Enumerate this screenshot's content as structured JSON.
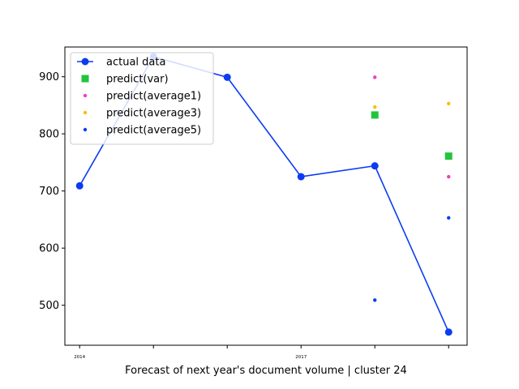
{
  "chart_data": {
    "type": "line",
    "title": "",
    "xlabel": "Forecast of next year's document volume | cluster 24",
    "ylabel": "",
    "x": [
      0,
      1,
      2,
      3,
      4,
      5
    ],
    "xlim": [
      -0.2,
      5.25
    ],
    "ylim": [
      430,
      952
    ],
    "x_ticks": [
      {
        "x": 0,
        "label": "2014"
      },
      {
        "x": 1,
        "label": ""
      },
      {
        "x": 2,
        "label": ""
      },
      {
        "x": 3,
        "label": "2017"
      },
      {
        "x": 4,
        "label": ""
      },
      {
        "x": 5,
        "label": ""
      }
    ],
    "y_ticks": [
      500,
      600,
      700,
      800,
      900
    ],
    "legend_position": "top-left",
    "grid": false,
    "series": [
      {
        "name": "actual data",
        "kind": "line-marker",
        "color": "#0b3cf2",
        "points": [
          [
            0,
            709
          ],
          [
            1,
            935
          ],
          [
            2,
            899
          ],
          [
            3,
            725
          ],
          [
            4,
            744
          ],
          [
            5,
            453
          ]
        ]
      },
      {
        "name": "predict(var)",
        "kind": "square",
        "color": "#22c43c",
        "points": [
          [
            4,
            833
          ],
          [
            5,
            761
          ]
        ]
      },
      {
        "name": "predict(average1)",
        "kind": "dot",
        "color": "#ee3fc0",
        "points": [
          [
            4,
            899
          ],
          [
            5,
            725
          ]
        ]
      },
      {
        "name": "predict(average3)",
        "kind": "dot",
        "color": "#f5c000",
        "points": [
          [
            4,
            847
          ],
          [
            5,
            853
          ]
        ]
      },
      {
        "name": "predict(average5)",
        "kind": "dot",
        "color": "#0b3cf2",
        "points": [
          [
            4,
            509
          ],
          [
            5,
            653
          ]
        ]
      }
    ]
  }
}
